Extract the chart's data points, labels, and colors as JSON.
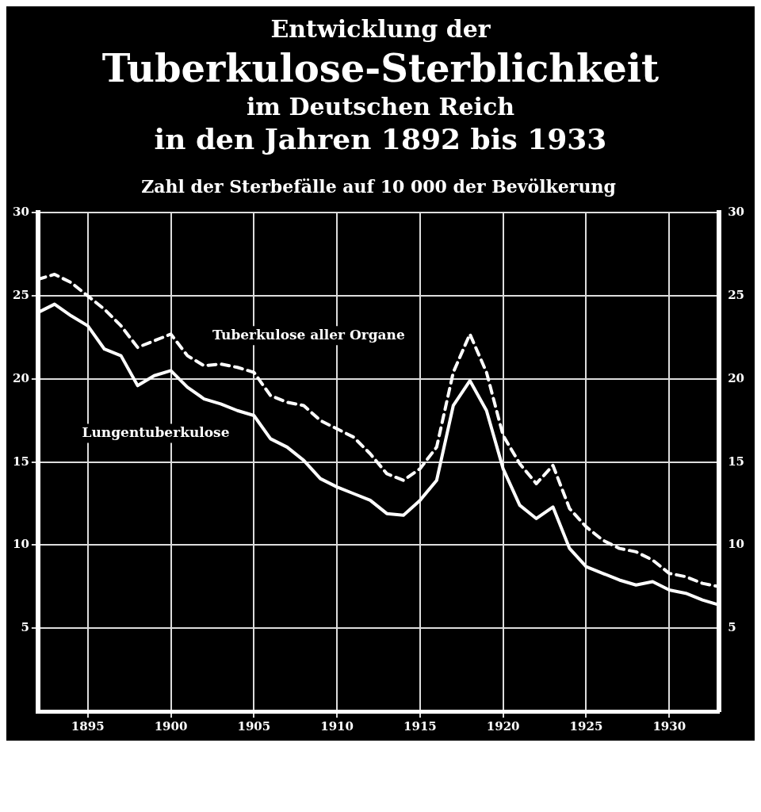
{
  "chart_data": {
    "type": "line",
    "title": [
      "Entwicklung der",
      "Tuberkulose-Sterblichkeit",
      "im Deutschen Reich",
      "in den Jahren 1892 bis 1933"
    ],
    "subtitle": "Zahl der Sterbefälle auf 10 000 der Bevölkerung",
    "x": [
      1892,
      1893,
      1894,
      1895,
      1896,
      1897,
      1898,
      1899,
      1900,
      1901,
      1902,
      1903,
      1904,
      1905,
      1906,
      1907,
      1908,
      1909,
      1910,
      1911,
      1912,
      1913,
      1914,
      1915,
      1916,
      1917,
      1918,
      1919,
      1920,
      1921,
      1922,
      1923,
      1924,
      1925,
      1926,
      1927,
      1928,
      1929,
      1930,
      1931,
      1932,
      1933
    ],
    "series": [
      {
        "name": "Tuberkulose aller Organe",
        "color": "#ffffff",
        "line_style": "dashed",
        "values": [
          26.0,
          26.3,
          25.8,
          25.0,
          24.2,
          23.2,
          21.9,
          22.3,
          22.7,
          21.4,
          20.8,
          20.9,
          20.7,
          20.4,
          19.0,
          18.6,
          18.4,
          17.5,
          17.0,
          16.5,
          15.5,
          14.3,
          13.9,
          14.6,
          15.9,
          20.4,
          22.7,
          20.4,
          16.6,
          14.9,
          13.7,
          14.8,
          12.2,
          11.1,
          10.3,
          9.8,
          9.6,
          9.1,
          8.3,
          8.1,
          7.7,
          7.5
        ]
      },
      {
        "name": "Lungentuberkulose",
        "color": "#ffffff",
        "line_style": "solid",
        "values": [
          24.0,
          24.5,
          23.8,
          23.2,
          21.8,
          21.4,
          19.6,
          20.2,
          20.5,
          19.5,
          18.8,
          18.5,
          18.1,
          17.8,
          16.4,
          15.9,
          15.1,
          14.0,
          13.5,
          13.1,
          12.7,
          11.9,
          11.8,
          12.7,
          13.9,
          18.4,
          19.9,
          18.1,
          14.6,
          12.4,
          11.6,
          12.3,
          9.8,
          8.7,
          8.3,
          7.9,
          7.6,
          7.8,
          7.3,
          7.1,
          6.7,
          6.4
        ]
      }
    ],
    "xlim": [
      1892,
      1933
    ],
    "xticks": [
      1895,
      1900,
      1905,
      1910,
      1915,
      1920,
      1925,
      1930
    ],
    "ylim": [
      0,
      30
    ],
    "yticks": [
      5,
      10,
      15,
      20,
      25,
      30
    ],
    "y2lim": [
      0,
      30
    ],
    "y2ticks": [
      5,
      10,
      15,
      20,
      25,
      30
    ],
    "grid": true,
    "legend": false,
    "marker": "none"
  }
}
